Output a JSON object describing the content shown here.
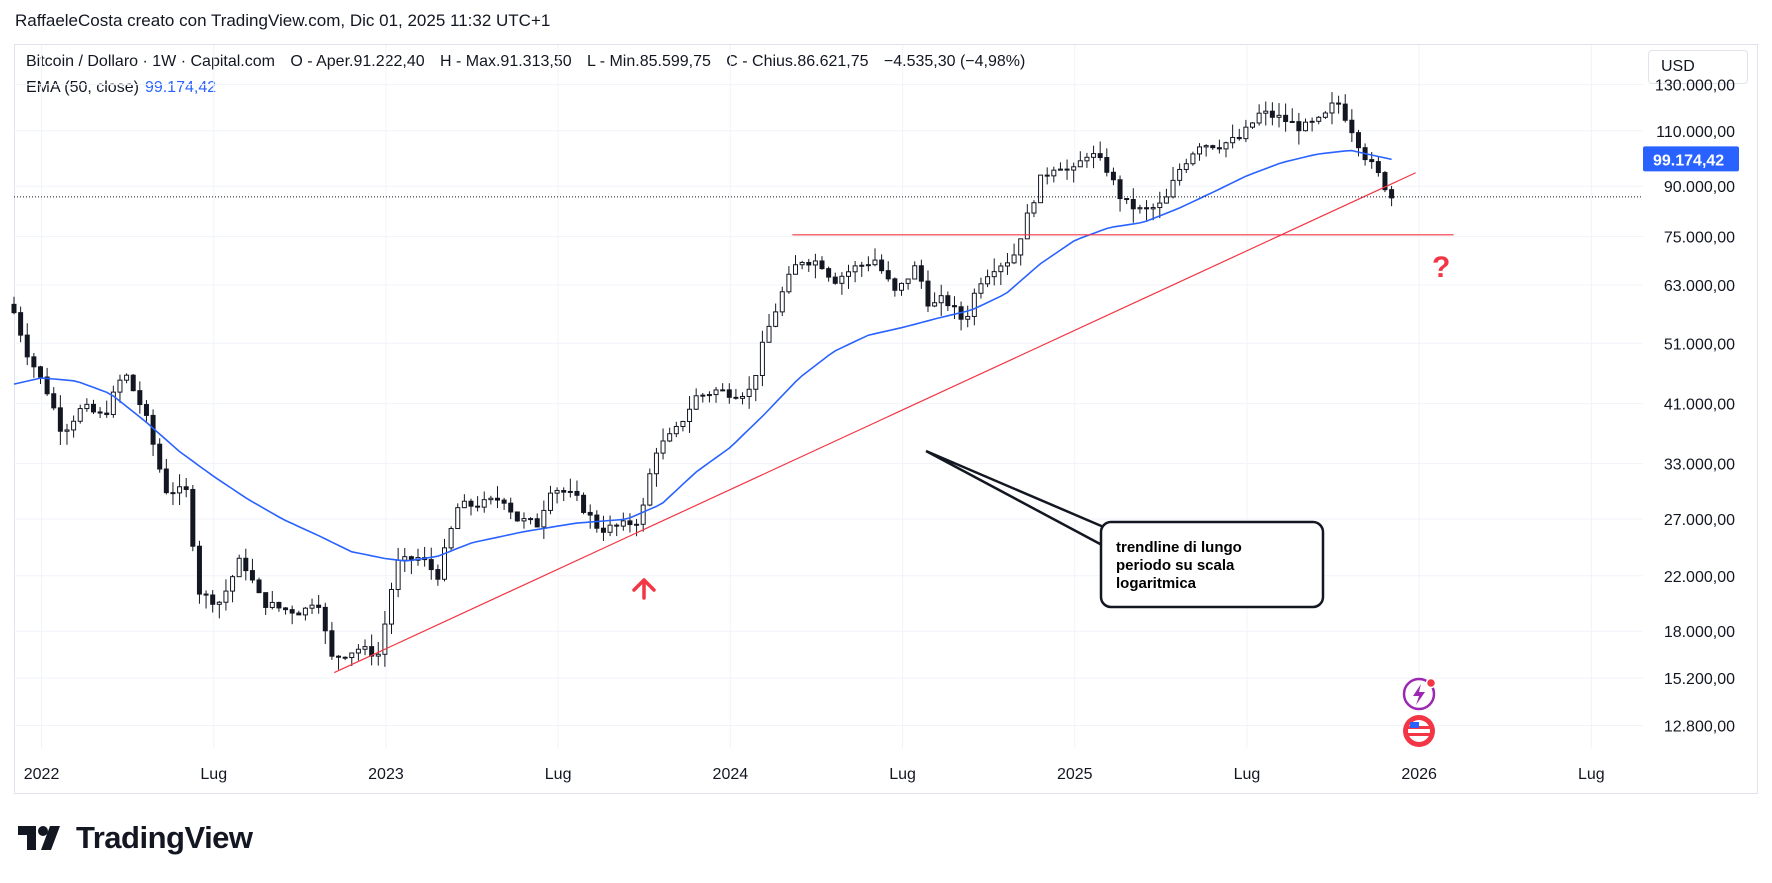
{
  "header": {
    "text": "RaffaeleCosta creato con TradingView.com, Dic 01, 2025 11:32 UTC+1"
  },
  "legend": {
    "symbol": "Bitcoin / Dollaro · 1W · Capital.com",
    "open": "O - Aper.91.222,40",
    "high": "H - Max.91.313,50",
    "low": "L - Min.85.599,75",
    "close": "C - Chius.86.621,75",
    "change": "−4.535,30 (−4,98%)",
    "ema_label": "EMA (50, close)",
    "ema_value": "99.174,42"
  },
  "currency": "USD",
  "brand": {
    "name": "TradingView"
  },
  "colors": {
    "ema": "#2962ff",
    "trendline": "#f23645",
    "candle": "#131722",
    "grid": "#f0f3fa",
    "badge_bg": "#2962ff"
  },
  "chart_data": {
    "type": "candlestick",
    "title": "Bitcoin / Dollaro · 1W · Capital.com",
    "y_scale": "log",
    "ylim": [
      11800,
      150000
    ],
    "xlim": [
      2021.92,
      2026.65
    ],
    "y_ticks": [
      130000,
      110000,
      90000,
      75000,
      63000,
      51000,
      41000,
      33000,
      27000,
      22000,
      18000,
      15200,
      12800
    ],
    "y_tick_labels": [
      "130.000,00",
      "110.000,00",
      "90.000,00",
      "75.000,00",
      "63.000,00",
      "51.000,00",
      "41.000,00",
      "33.000,00",
      "27.000,00",
      "22.000,00",
      "18.000,00",
      "15.200,00",
      "12.800,00"
    ],
    "x_ticks": [
      2022.0,
      2022.5,
      2023.0,
      2023.5,
      2024.0,
      2024.5,
      2025.0,
      2025.5,
      2026.0,
      2026.5
    ],
    "x_tick_labels": [
      "2022",
      "Lug",
      "2023",
      "Lug",
      "2024",
      "Lug",
      "2025",
      "Lug",
      "2026",
      "Lug"
    ],
    "price_anchors": [
      [
        2021.92,
        57000
      ],
      [
        2021.96,
        49000
      ],
      [
        2022.02,
        42500
      ],
      [
        2022.06,
        37000
      ],
      [
        2022.12,
        40500
      ],
      [
        2022.18,
        39000
      ],
      [
        2022.24,
        46000
      ],
      [
        2022.3,
        39500
      ],
      [
        2022.36,
        30000
      ],
      [
        2022.42,
        29800
      ],
      [
        2022.46,
        20500
      ],
      [
        2022.52,
        20000
      ],
      [
        2022.58,
        23500
      ],
      [
        2022.64,
        20000
      ],
      [
        2022.7,
        19500
      ],
      [
        2022.76,
        19300
      ],
      [
        2022.8,
        20500
      ],
      [
        2022.84,
        16300
      ],
      [
        2022.92,
        16900
      ],
      [
        2022.98,
        16550
      ],
      [
        2023.03,
        23000
      ],
      [
        2023.1,
        23500
      ],
      [
        2023.15,
        22000
      ],
      [
        2023.21,
        28300
      ],
      [
        2023.28,
        28500
      ],
      [
        2023.34,
        29200
      ],
      [
        2023.38,
        27000
      ],
      [
        2023.44,
        26500
      ],
      [
        2023.48,
        30400
      ],
      [
        2023.55,
        29200
      ],
      [
        2023.62,
        26000
      ],
      [
        2023.68,
        26300
      ],
      [
        2023.74,
        27000
      ],
      [
        2023.78,
        34500
      ],
      [
        2023.84,
        37000
      ],
      [
        2023.9,
        42000
      ],
      [
        2023.96,
        43000
      ],
      [
        2024.02,
        42500
      ],
      [
        2024.06,
        43000
      ],
      [
        2024.1,
        52000
      ],
      [
        2024.16,
        63000
      ],
      [
        2024.2,
        69000
      ],
      [
        2024.26,
        68500
      ],
      [
        2024.3,
        64000
      ],
      [
        2024.36,
        67000
      ],
      [
        2024.42,
        69000
      ],
      [
        2024.48,
        61000
      ],
      [
        2024.54,
        67500
      ],
      [
        2024.58,
        58000
      ],
      [
        2024.62,
        60000
      ],
      [
        2024.68,
        55000
      ],
      [
        2024.72,
        63500
      ],
      [
        2024.76,
        67000
      ],
      [
        2024.82,
        69500
      ],
      [
        2024.86,
        80000
      ],
      [
        2024.9,
        92000
      ],
      [
        2024.95,
        98000
      ],
      [
        2024.99,
        94000
      ],
      [
        2025.04,
        102000
      ],
      [
        2025.09,
        96500
      ],
      [
        2025.14,
        85000
      ],
      [
        2025.2,
        82000
      ],
      [
        2025.26,
        84500
      ],
      [
        2025.3,
        95000
      ],
      [
        2025.36,
        105000
      ],
      [
        2025.42,
        104500
      ],
      [
        2025.48,
        107000
      ],
      [
        2025.54,
        117500
      ],
      [
        2025.6,
        115000
      ],
      [
        2025.66,
        111000
      ],
      [
        2025.72,
        114500
      ],
      [
        2025.76,
        123000
      ],
      [
        2025.8,
        112000
      ],
      [
        2025.84,
        101000
      ],
      [
        2025.88,
        94000
      ],
      [
        2025.92,
        86600
      ]
    ],
    "ema_label": "EMA (50, close)",
    "ema_anchors": [
      [
        2021.92,
        44000
      ],
      [
        2022.0,
        45000
      ],
      [
        2022.1,
        44500
      ],
      [
        2022.2,
        42500
      ],
      [
        2022.3,
        38500
      ],
      [
        2022.4,
        34500
      ],
      [
        2022.5,
        31500
      ],
      [
        2022.6,
        29000
      ],
      [
        2022.7,
        27000
      ],
      [
        2022.8,
        25500
      ],
      [
        2022.9,
        24000
      ],
      [
        2023.0,
        23400
      ],
      [
        2023.06,
        23200
      ],
      [
        2023.15,
        23600
      ],
      [
        2023.25,
        24800
      ],
      [
        2023.4,
        25800
      ],
      [
        2023.55,
        26600
      ],
      [
        2023.7,
        27000
      ],
      [
        2023.8,
        28500
      ],
      [
        2023.9,
        32000
      ],
      [
        2024.0,
        35000
      ],
      [
        2024.1,
        39500
      ],
      [
        2024.2,
        45000
      ],
      [
        2024.3,
        49500
      ],
      [
        2024.4,
        52500
      ],
      [
        2024.5,
        54000
      ],
      [
        2024.6,
        55800
      ],
      [
        2024.7,
        57500
      ],
      [
        2024.8,
        61000
      ],
      [
        2024.9,
        68000
      ],
      [
        2025.0,
        74000
      ],
      [
        2025.1,
        77500
      ],
      [
        2025.2,
        79000
      ],
      [
        2025.3,
        83000
      ],
      [
        2025.4,
        88000
      ],
      [
        2025.5,
        93500
      ],
      [
        2025.6,
        98000
      ],
      [
        2025.7,
        101000
      ],
      [
        2025.8,
        102500
      ],
      [
        2025.92,
        99174.42
      ]
    ],
    "trendline": {
      "label": "trendline di lungo periodo su scala logaritmica",
      "points": [
        [
          2022.85,
          15500
        ],
        [
          2025.99,
          94500
        ]
      ]
    },
    "support_line": {
      "value": 75500,
      "x_range": [
        2024.18,
        2026.1
      ]
    },
    "current_price_value": 86621.75,
    "ema_badge": "99.174,42",
    "annotation": {
      "lines": [
        "trendline di lungo",
        "periodo su scala",
        "logaritmica"
      ]
    },
    "question_mark": "?"
  }
}
